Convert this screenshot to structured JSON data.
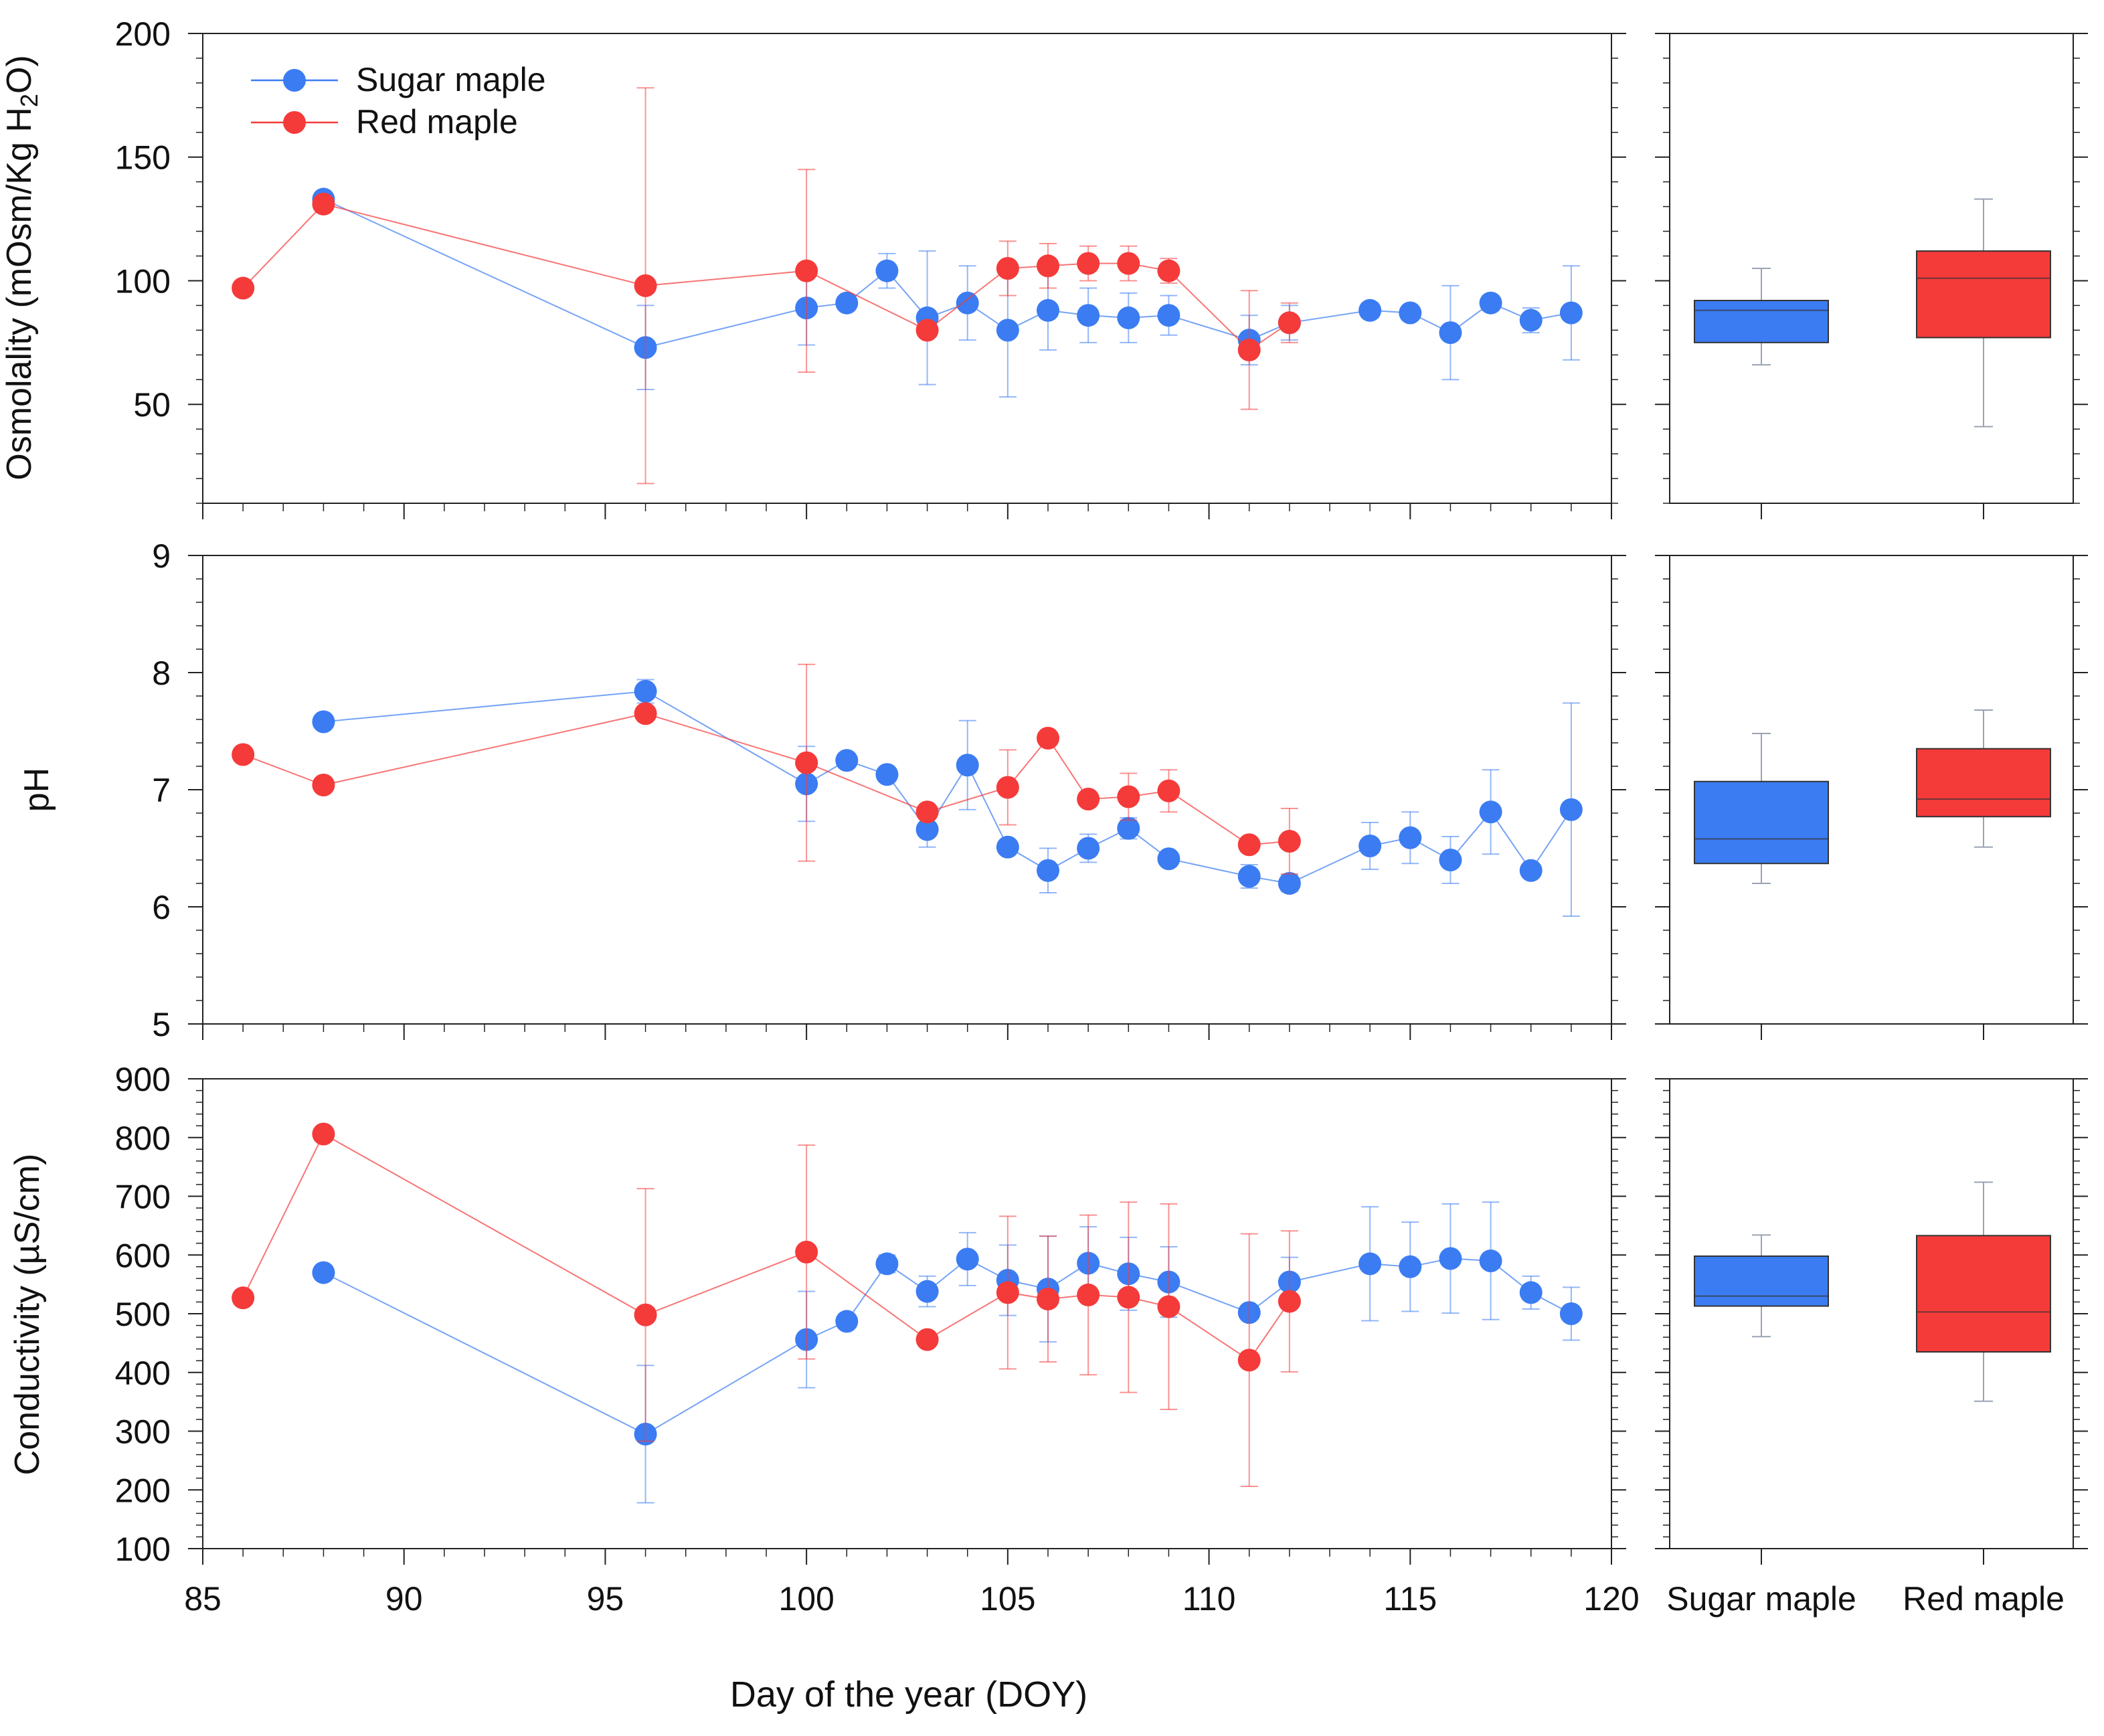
{
  "colors": {
    "sugar": "#3b7cf2",
    "red": "#f53a3a",
    "axis": "#222222",
    "whisker": "#9aa3b2"
  },
  "legend": {
    "sugar": "Sugar maple",
    "red": "Red maple"
  },
  "chart_data": [
    {
      "type": "scatter",
      "panel": "osmolality",
      "ylabel_parts": [
        "Osmolality (mOsm/Kg H",
        "2",
        "O)"
      ],
      "ylim": [
        10,
        200
      ],
      "yticks": [
        50,
        100,
        150,
        200
      ],
      "yminor": 10,
      "xlim": [
        85,
        120
      ],
      "xticks": [
        85,
        90,
        95,
        100,
        105,
        110,
        115,
        120
      ],
      "xminor": 1,
      "show_xticklabels": false,
      "legend_position": "top-left",
      "series": [
        {
          "name": "Sugar maple",
          "color_key": "sugar",
          "x": [
            88,
            96,
            100,
            101,
            102,
            103,
            104,
            105,
            106,
            107,
            108,
            109,
            111,
            112,
            114,
            115,
            116,
            117,
            118,
            119
          ],
          "y": [
            133,
            73,
            89,
            91,
            104,
            85,
            91,
            80,
            88,
            86,
            85,
            86,
            76,
            83,
            88,
            87,
            79,
            91,
            84,
            87
          ],
          "err": [
            0,
            17,
            15,
            0,
            7,
            27,
            15,
            27,
            16,
            11,
            10,
            8,
            10,
            7,
            3,
            0,
            19,
            3,
            5,
            19
          ]
        },
        {
          "name": "Red maple",
          "color_key": "red",
          "x": [
            86,
            88,
            96,
            100,
            103,
            105,
            106,
            107,
            108,
            109,
            111,
            112
          ],
          "y": [
            97,
            131,
            98,
            104,
            80,
            105,
            106,
            107,
            107,
            104,
            72,
            83
          ],
          "err": [
            0,
            0,
            80,
            41,
            0,
            11,
            9,
            7,
            7,
            5,
            24,
            8
          ]
        }
      ],
      "boxplot": {
        "categories": [
          "Sugar maple",
          "Red maple"
        ],
        "boxes": [
          {
            "name": "Sugar maple",
            "color_key": "sugar",
            "whisker_low": 66,
            "q1": 75,
            "median": 88,
            "q3": 92,
            "whisker_high": 105
          },
          {
            "name": "Red maple",
            "color_key": "red",
            "whisker_low": 41,
            "q1": 77,
            "median": 101,
            "q3": 112,
            "whisker_high": 133
          }
        ]
      }
    },
    {
      "type": "scatter",
      "panel": "ph",
      "ylabel_parts": [
        "pH"
      ],
      "ylim": [
        5,
        9
      ],
      "yticks": [
        5,
        6,
        7,
        8,
        9
      ],
      "yminor": 0.2,
      "xlim": [
        85,
        120
      ],
      "xticks": [
        85,
        90,
        95,
        100,
        105,
        110,
        115,
        120
      ],
      "xminor": 1,
      "show_xticklabels": false,
      "series": [
        {
          "name": "Sugar maple",
          "color_key": "sugar",
          "x": [
            88,
            96,
            100,
            101,
            102,
            103,
            104,
            105,
            106,
            107,
            108,
            109,
            111,
            112,
            114,
            115,
            116,
            117,
            118,
            119
          ],
          "y": [
            7.58,
            7.84,
            7.05,
            7.25,
            7.13,
            6.66,
            7.21,
            6.51,
            6.31,
            6.5,
            6.67,
            6.41,
            6.26,
            6.2,
            6.52,
            6.59,
            6.4,
            6.81,
            6.31,
            6.83
          ],
          "err": [
            0,
            0.1,
            0.32,
            0,
            0,
            0.15,
            0.38,
            0,
            0.19,
            0.12,
            0.09,
            0,
            0.1,
            0.07,
            0.2,
            0.22,
            0.2,
            0.36,
            0,
            0.91
          ]
        },
        {
          "name": "Red maple",
          "color_key": "red",
          "x": [
            86,
            88,
            96,
            100,
            103,
            105,
            106,
            107,
            108,
            109,
            111,
            112
          ],
          "y": [
            7.3,
            7.04,
            7.65,
            7.23,
            6.81,
            7.02,
            7.44,
            6.92,
            6.94,
            6.99,
            6.53,
            6.56
          ],
          "err": [
            0,
            0,
            0,
            0.84,
            0,
            0.32,
            0,
            0,
            0.2,
            0.18,
            0,
            0.28
          ]
        }
      ],
      "boxplot": {
        "categories": [
          "Sugar maple",
          "Red maple"
        ],
        "boxes": [
          {
            "name": "Sugar maple",
            "color_key": "sugar",
            "whisker_low": 6.2,
            "q1": 6.37,
            "median": 6.58,
            "q3": 7.07,
            "whisker_high": 7.48
          },
          {
            "name": "Red maple",
            "color_key": "red",
            "whisker_low": 6.51,
            "q1": 6.77,
            "median": 6.92,
            "q3": 7.35,
            "whisker_high": 7.68
          }
        ]
      }
    },
    {
      "type": "scatter",
      "panel": "conductivity",
      "ylabel_parts": [
        "Conductivity (µS/cm)"
      ],
      "ylim": [
        100,
        900
      ],
      "yticks": [
        100,
        200,
        300,
        400,
        500,
        600,
        700,
        800,
        900
      ],
      "yminor": 20,
      "xlim": [
        85,
        120
      ],
      "xticks": [
        85,
        90,
        95,
        100,
        105,
        110,
        115,
        120
      ],
      "xminor": 1,
      "show_xticklabels": true,
      "xlabel": "Day of the year (DOY)",
      "series": [
        {
          "name": "Sugar maple",
          "color_key": "sugar",
          "x": [
            88,
            96,
            100,
            101,
            102,
            103,
            104,
            105,
            106,
            107,
            108,
            109,
            111,
            112,
            114,
            115,
            116,
            117,
            118,
            119
          ],
          "y": [
            570,
            295,
            456,
            487,
            585,
            538,
            593,
            557,
            542,
            586,
            568,
            554,
            502,
            554,
            585,
            580,
            594,
            590,
            536,
            500
          ],
          "err": [
            0,
            117,
            82,
            0,
            15,
            26,
            45,
            60,
            90,
            62,
            62,
            60,
            0,
            42,
            97,
            76,
            93,
            100,
            28,
            45
          ]
        },
        {
          "name": "Red maple",
          "color_key": "red",
          "x": [
            86,
            88,
            96,
            100,
            103,
            105,
            106,
            107,
            108,
            109,
            111,
            112
          ],
          "y": [
            527,
            806,
            498,
            605,
            456,
            536,
            525,
            532,
            528,
            512,
            421,
            521
          ],
          "err": [
            0,
            0,
            215,
            182,
            0,
            130,
            107,
            136,
            162,
            175,
            215,
            120
          ]
        }
      ],
      "boxplot": {
        "categories": [
          "Sugar maple",
          "Red maple"
        ],
        "boxes": [
          {
            "name": "Sugar maple",
            "color_key": "sugar",
            "whisker_low": 461,
            "q1": 513,
            "median": 530,
            "q3": 598,
            "whisker_high": 634
          },
          {
            "name": "Red maple",
            "color_key": "red",
            "whisker_low": 351,
            "q1": 435,
            "median": 503,
            "q3": 633,
            "whisker_high": 724
          }
        ]
      }
    }
  ]
}
